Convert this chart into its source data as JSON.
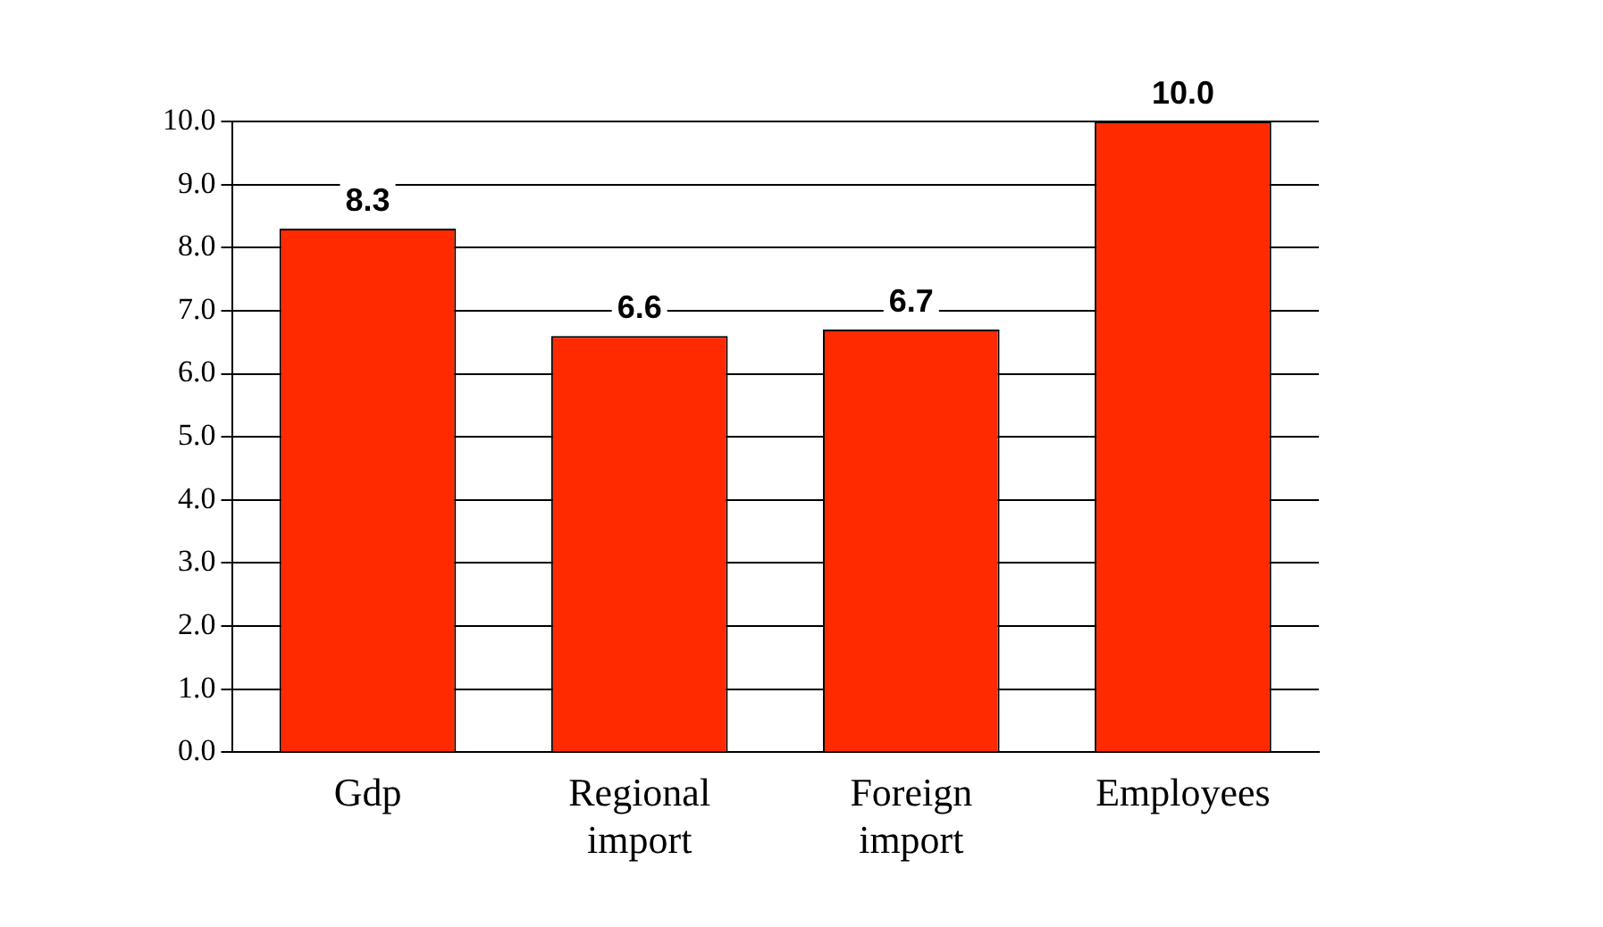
{
  "chart_data": {
    "type": "bar",
    "categories": [
      "Gdp",
      "Regional import",
      "Foreign import",
      "Employees"
    ],
    "values": [
      8.3,
      6.6,
      6.7,
      10.0
    ],
    "color": "#ff2a00",
    "value_labels": [
      "8.3",
      "6.6",
      "6.7",
      "10.0"
    ],
    "ylim": [
      0,
      10
    ],
    "yticks": [
      {
        "value": 0,
        "label": "0.0"
      },
      {
        "value": 1,
        "label": "1.0"
      },
      {
        "value": 2,
        "label": "2.0"
      },
      {
        "value": 3,
        "label": "3.0"
      },
      {
        "value": 4,
        "label": "4.0"
      },
      {
        "value": 5,
        "label": "5.0"
      },
      {
        "value": 6,
        "label": "6.0"
      },
      {
        "value": 7,
        "label": "7.0"
      },
      {
        "value": 8,
        "label": "8.0"
      },
      {
        "value": 9,
        "label": "9.0"
      },
      {
        "value": 10,
        "label": "10.0"
      }
    ],
    "grid": "y",
    "legend": false
  }
}
